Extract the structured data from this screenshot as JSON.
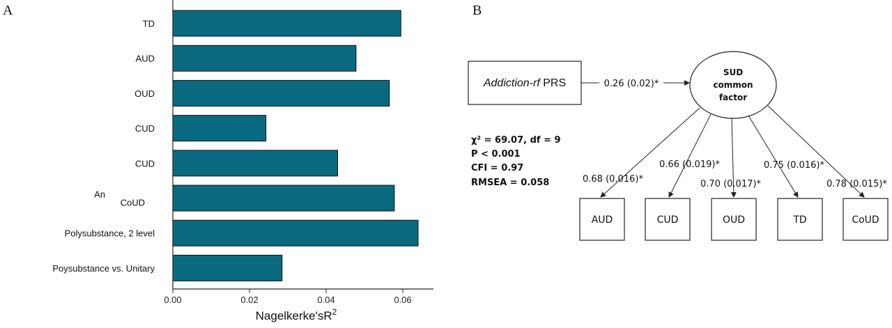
{
  "panels": {
    "a": "A",
    "b": "B"
  },
  "chart_data": {
    "type": "bar",
    "orientation": "horizontal",
    "categories": [
      "TD",
      "AUD",
      "OUD",
      "CUD",
      "CUD",
      "An CoUD",
      "Polysubstance, 2 level",
      "Poysubstance vs. Unitary"
    ],
    "category_lines": [
      [
        "TD"
      ],
      [
        "AUD"
      ],
      [
        "OUD"
      ],
      [
        "CUD"
      ],
      [
        "CUD"
      ],
      [
        "An",
        "CoUD"
      ],
      [
        "Polysubstance, 2 level"
      ],
      [
        "Poysubstance vs. Unitary"
      ]
    ],
    "values": [
      0.0595,
      0.0478,
      0.0565,
      0.0243,
      0.043,
      0.0578,
      0.064,
      0.0285
    ],
    "xlabel": "Nagelkerke'sR",
    "xlabel_sup": "2",
    "xlim": [
      0,
      0.066
    ],
    "xticks": [
      0.0,
      0.02,
      0.04,
      0.06
    ],
    "xtick_labels": [
      "0.00",
      "0.02",
      "0.04",
      "0.06"
    ],
    "bar_color": "#0a6a7f",
    "grid": false
  },
  "sem": {
    "prs_label_italic": "Addiction-rf",
    "prs_label_rest": " PRS",
    "prs_path": "0.26 (0.02)*",
    "factor_lines": [
      "SUD",
      "common",
      "factor"
    ],
    "fit_lines": [
      "χ² = 69.07, df = 9",
      "P < 0.001",
      "CFI = 0.97",
      "RMSEA = 0.058"
    ],
    "indicators": [
      {
        "label": "AUD",
        "loading": "0.68 (0.016)*"
      },
      {
        "label": "CUD",
        "loading": "0.66 (0.019)*"
      },
      {
        "label": "OUD",
        "loading": "0.70 (0.017)*"
      },
      {
        "label": "TD",
        "loading": "0.75 (0.016)*"
      },
      {
        "label": "CoUD",
        "loading": "0.78 (0.015)*"
      }
    ]
  }
}
